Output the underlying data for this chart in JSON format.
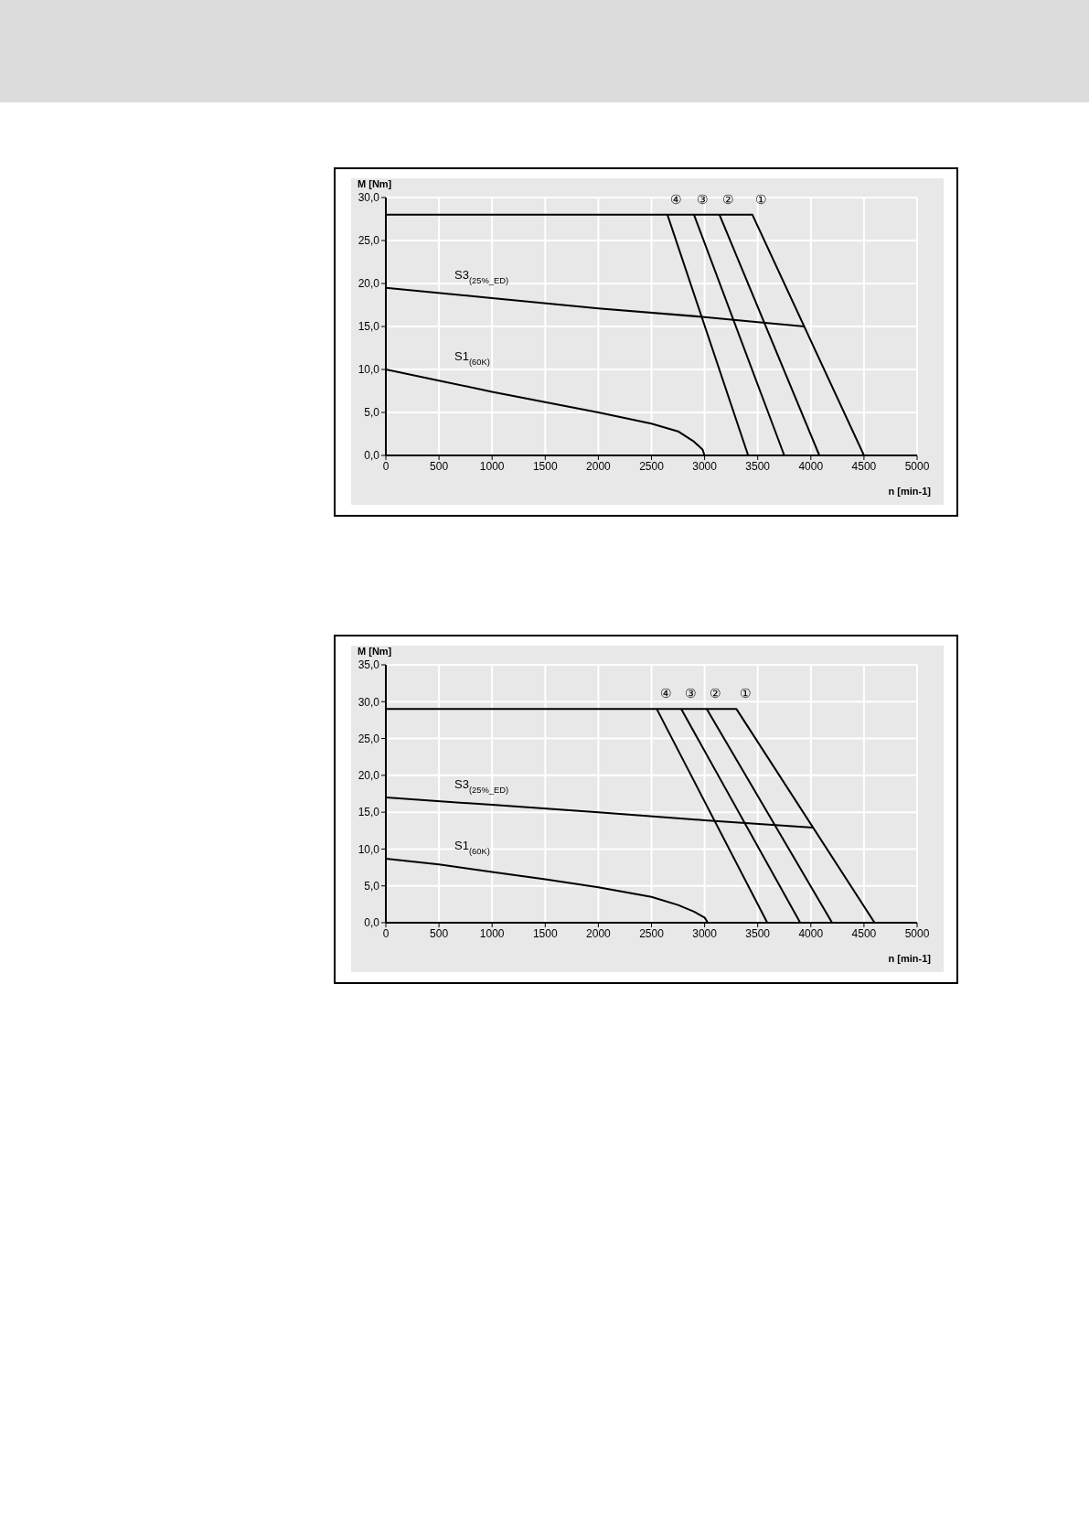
{
  "chart_data": [
    {
      "type": "line",
      "xlabel": "n [min-1]",
      "ylabel": "M [Nm]",
      "xlim": [
        0,
        5000
      ],
      "xticks": [
        0,
        500,
        1000,
        1500,
        2000,
        2500,
        3000,
        3500,
        4000,
        4500,
        5000
      ],
      "ylim": [
        0,
        30
      ],
      "yticks": [
        {
          "value": 0,
          "label": "0,0"
        },
        {
          "value": 5,
          "label": "5,0"
        },
        {
          "value": 10,
          "label": "10,0"
        },
        {
          "value": 15,
          "label": "15,0"
        },
        {
          "value": 20,
          "label": "20,0"
        },
        {
          "value": 25,
          "label": "25,0"
        },
        {
          "value": 30,
          "label": "30,0"
        }
      ],
      "grid": true,
      "marker": "none",
      "line_style": "solid",
      "series": [
        {
          "name": "①",
          "color": "#000000",
          "x": [
            0,
            3450,
            4500
          ],
          "values": [
            28,
            28,
            0
          ]
        },
        {
          "name": "②",
          "color": "#000000",
          "x": [
            3140,
            4080
          ],
          "values": [
            28,
            0
          ]
        },
        {
          "name": "③",
          "color": "#000000",
          "x": [
            2900,
            3750
          ],
          "values": [
            28,
            0
          ]
        },
        {
          "name": "④",
          "color": "#000000",
          "x": [
            2650,
            3410
          ],
          "values": [
            28,
            0
          ]
        },
        {
          "name": "S3$_{(25%_ED)}$",
          "color": "#000000",
          "x": [
            0,
            1000,
            2000,
            3000,
            3500,
            3940
          ],
          "values": [
            19.5,
            18.3,
            17.1,
            16.1,
            15.5,
            15.0
          ]
        },
        {
          "name": "S1$_{(60K)}$",
          "color": "#000000",
          "x": [
            0,
            500,
            1000,
            1500,
            2000,
            2500,
            2750,
            2900,
            2980,
            3000
          ],
          "values": [
            10,
            8.7,
            7.4,
            6.2,
            5.0,
            3.7,
            2.8,
            1.6,
            0.7,
            0
          ]
        }
      ]
    },
    {
      "type": "line",
      "xlabel": "n [min-1]",
      "ylabel": "M [Nm]",
      "xlim": [
        0,
        5000
      ],
      "xticks": [
        0,
        500,
        1000,
        1500,
        2000,
        2500,
        3000,
        3500,
        4000,
        4500,
        5000
      ],
      "ylim": [
        0,
        35
      ],
      "yticks": [
        {
          "value": 0,
          "label": "0,0"
        },
        {
          "value": 5,
          "label": "5,0"
        },
        {
          "value": 10,
          "label": "10,0"
        },
        {
          "value": 15,
          "label": "15,0"
        },
        {
          "value": 20,
          "label": "20,0"
        },
        {
          "value": 25,
          "label": "25,0"
        },
        {
          "value": 30,
          "label": "30,0"
        },
        {
          "value": 35,
          "label": "35,0"
        }
      ],
      "grid": true,
      "marker": "none",
      "line_style": "solid",
      "series": [
        {
          "name": "①",
          "color": "#000000",
          "x": [
            0,
            3300,
            4600
          ],
          "values": [
            29,
            29,
            0
          ]
        },
        {
          "name": "②",
          "color": "#000000",
          "x": [
            3020,
            4200
          ],
          "values": [
            29,
            0
          ]
        },
        {
          "name": "③",
          "color": "#000000",
          "x": [
            2780,
            3900
          ],
          "values": [
            29,
            0
          ]
        },
        {
          "name": "④",
          "color": "#000000",
          "x": [
            2550,
            3590
          ],
          "values": [
            29,
            0
          ]
        },
        {
          "name": "S3$_{(25%_ED)}$",
          "color": "#000000",
          "x": [
            0,
            1000,
            2000,
            3000,
            4020
          ],
          "values": [
            17.0,
            16.0,
            15.0,
            13.9,
            12.9
          ]
        },
        {
          "name": "S1$_{(60K)}$",
          "color": "#000000",
          "x": [
            0,
            500,
            1000,
            1500,
            2000,
            2500,
            2750,
            2900,
            3000,
            3030
          ],
          "values": [
            8.7,
            7.9,
            6.9,
            5.9,
            4.8,
            3.5,
            2.4,
            1.5,
            0.7,
            0
          ]
        }
      ]
    }
  ]
}
